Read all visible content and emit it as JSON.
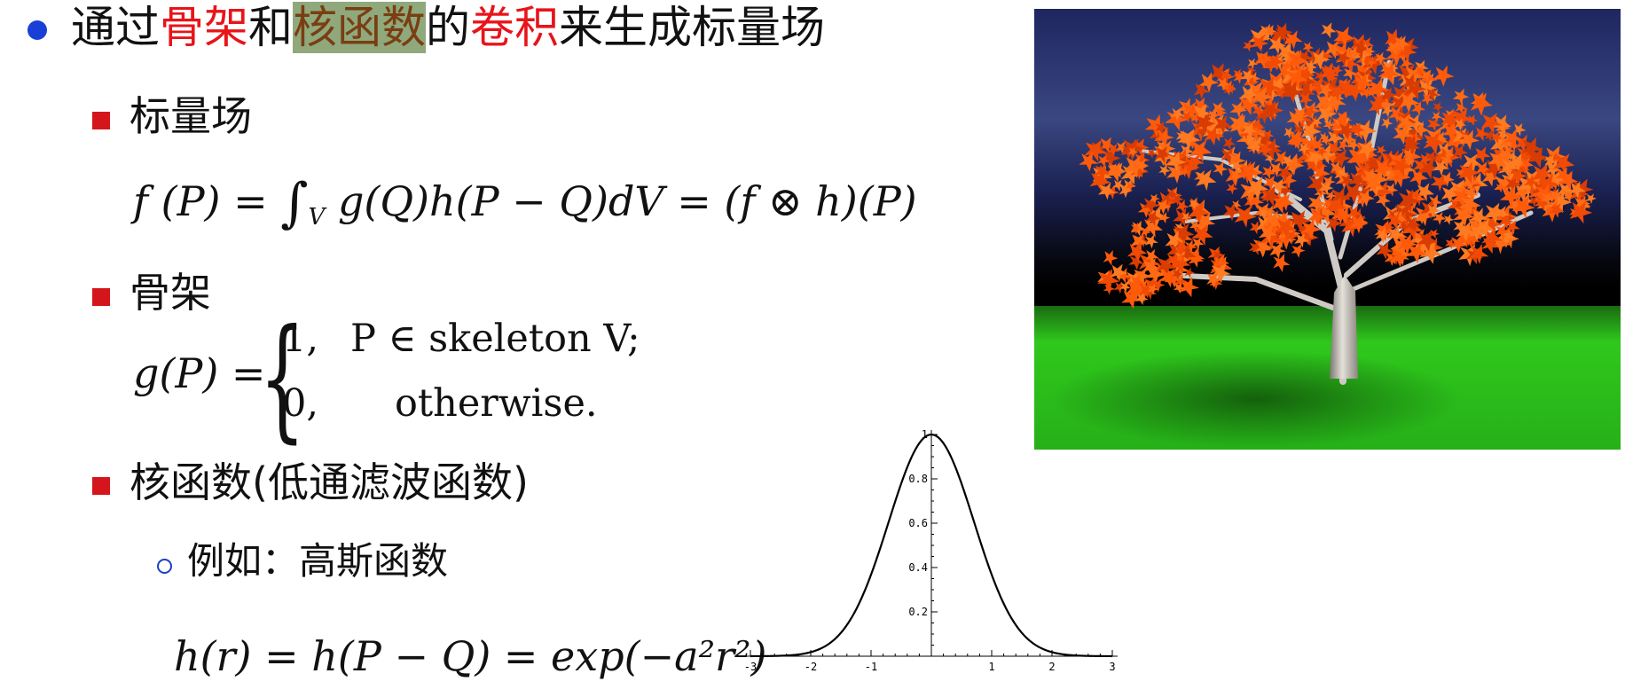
{
  "title": {
    "p1": "通过",
    "p2": "骨架",
    "p3": "和",
    "p4": "核函数",
    "p5": "的",
    "p6": "卷积",
    "p7": "来生成标量场"
  },
  "sections": {
    "scalar_field": "标量场",
    "skeleton": "骨架",
    "kernel": "核函数(低通滤波函数)",
    "example": "例如：高斯函数"
  },
  "formulas": {
    "scalar_field": {
      "lhs": "f (P) = ",
      "integral": "∫",
      "sub": "V",
      "rhs": " g(Q)h(P − Q)dV = (f ⊗ h)(P)"
    },
    "skeleton": {
      "lhs": "g(P) =",
      "case1_val": "1,",
      "case1_cond": "P ∈ skeleton  V;",
      "case2_val": "0,",
      "case2_cond": "otherwise."
    },
    "gaussian": {
      "text": "h(r) = h(P − Q) = exp(−a²r²)"
    }
  },
  "colors": {
    "bullet_main": "#1a3fd6",
    "bullet_section": "#d4161c",
    "highlight_red": "#e8141a",
    "highlight_bg": "#8fa97c"
  },
  "chart_data": {
    "type": "line",
    "title": "",
    "xlabel": "",
    "ylabel": "",
    "xlim": [
      -3,
      3
    ],
    "ylim": [
      0,
      1
    ],
    "x_ticks": [
      "-3",
      "-2",
      "-1",
      "1",
      "2",
      "3"
    ],
    "y_ticks": [
      "0.2",
      "0.4",
      "0.6",
      "0.8",
      "1"
    ],
    "grid": false,
    "function": "exp(-x^2)",
    "x": [
      -3,
      -2.5,
      -2,
      -1.5,
      -1,
      -0.5,
      0,
      0.5,
      1,
      1.5,
      2,
      2.5,
      3
    ],
    "y": [
      0.0001,
      0.0019,
      0.0183,
      0.1054,
      0.3679,
      0.7788,
      1.0,
      0.7788,
      0.3679,
      0.1054,
      0.0183,
      0.0019,
      0.0001
    ]
  },
  "image": {
    "subject": "tree-with-orange-foliage"
  }
}
